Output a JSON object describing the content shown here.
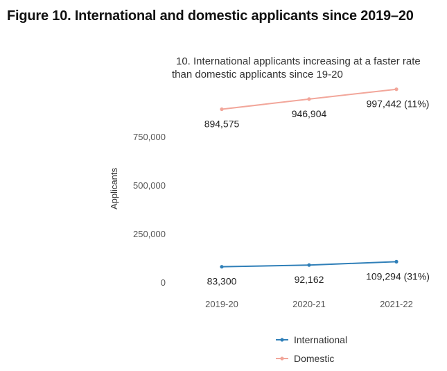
{
  "figure_title": "Figure 10. International and domestic applicants since 2019–20",
  "chart_data": {
    "type": "line",
    "title_lines": [
      "10. International applicants increasing at a faster rate",
      "than domestic applicants since 19-20"
    ],
    "xlabel": "",
    "ylabel": "Applicants",
    "categories": [
      "2019-20",
      "2020-21",
      "2021-22"
    ],
    "yticks": [
      0,
      250000,
      500000,
      750000
    ],
    "ytick_labels": [
      "0",
      "250,000",
      "500,000",
      "750,000"
    ],
    "ylim": [
      0,
      1000000
    ],
    "grid": false,
    "legend_position": "bottom",
    "series": [
      {
        "name": "International",
        "color": "#2f7fb8",
        "values": [
          83300,
          92162,
          109294
        ],
        "labels": [
          "83,300",
          "92,162",
          "109,294 (31%)"
        ]
      },
      {
        "name": "Domestic",
        "color": "#f2a69a",
        "values": [
          894575,
          946904,
          997442
        ],
        "labels": [
          "894,575",
          "946,904",
          "997,442 (11%)"
        ]
      }
    ]
  }
}
